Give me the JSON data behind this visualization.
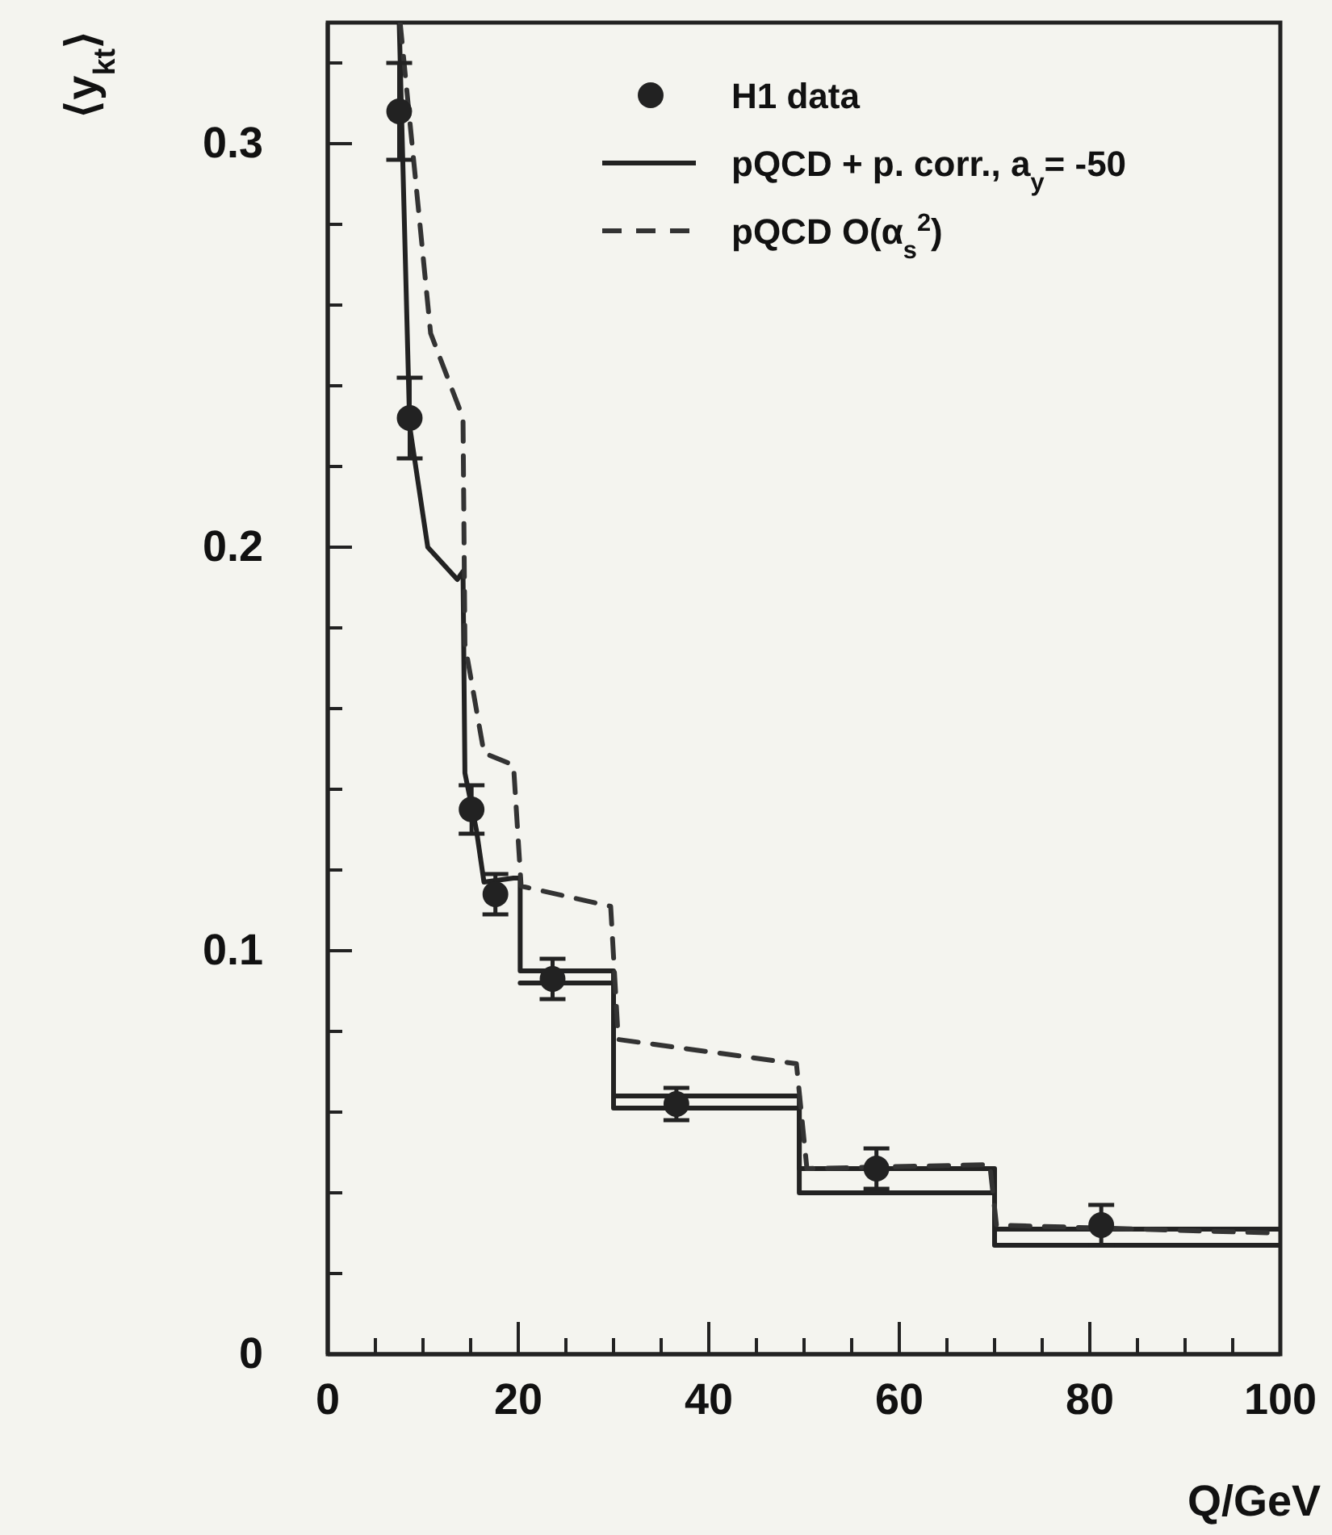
{
  "chart_data": {
    "type": "line",
    "xlabel": "Q/GeV",
    "ylabel": "⟨y$_{kt}$⟩",
    "xlim": [
      0,
      100
    ],
    "ylim": [
      0,
      0.33
    ],
    "xticks": [
      0,
      {
        "value": 5,
        "label": null
      },
      {
        "value": 10,
        "label": null
      },
      {
        "value": 15,
        "label": null
      },
      20,
      {
        "value": 25,
        "label": null
      },
      {
        "value": 30,
        "label": null
      },
      {
        "value": 35,
        "label": null
      },
      40,
      {
        "value": 45,
        "label": null
      },
      {
        "value": 50,
        "label": null
      },
      {
        "value": 55,
        "label": null
      },
      60,
      {
        "value": 65,
        "label": null
      },
      {
        "value": 70,
        "label": null
      },
      {
        "value": 75,
        "label": null
      },
      80,
      {
        "value": 85,
        "label": null
      },
      {
        "value": 90,
        "label": null
      },
      {
        "value": 95,
        "label": null
      },
      100
    ],
    "yticks": [
      0,
      {
        "value": 0.02,
        "label": null
      },
      {
        "value": 0.04,
        "label": null
      },
      {
        "value": 0.06,
        "label": null
      },
      {
        "value": 0.08,
        "label": null
      },
      0.1,
      {
        "value": 0.12,
        "label": null
      },
      {
        "value": 0.14,
        "label": null
      },
      {
        "value": 0.16,
        "label": null
      },
      {
        "value": 0.18,
        "label": null
      },
      0.2,
      {
        "value": 0.22,
        "label": null
      },
      {
        "value": 0.24,
        "label": null
      },
      {
        "value": 0.26,
        "label": null
      },
      {
        "value": 0.28,
        "label": null
      },
      0.3,
      {
        "value": 0.32,
        "label": null
      }
    ],
    "legend": "top right",
    "series": [
      {
        "name": "H1 data",
        "type": "scatter",
        "marker": "circle",
        "color": "#222222",
        "x": [
          7.5,
          8.6,
          15.1,
          17.6,
          23.6,
          36.6,
          57.6,
          81.2
        ],
        "values": [
          0.308,
          0.232,
          0.135,
          0.114,
          0.093,
          0.062,
          0.046,
          0.032
        ],
        "errors": [
          0.012,
          0.01,
          0.006,
          0.005,
          0.005,
          0.004,
          0.005,
          0.005
        ]
      },
      {
        "name": "pQCD + p. corr., a$_{y}$= -50",
        "line_style": "solid",
        "color": "#222222",
        "x": [
          7.5,
          8.6,
          10.5,
          13.6,
          14.2,
          14.4,
          15.6,
          16.4,
          19.5,
          20.2,
          20.2,
          30,
          30,
          49.5,
          49.5,
          70,
          70,
          100
        ],
        "values": [
          0.33,
          0.23,
          0.2,
          0.192,
          0.194,
          0.144,
          0.13,
          0.117,
          0.118,
          0.118,
          0.095,
          0.095,
          0.064,
          0.064,
          0.046,
          0.046,
          0.031,
          0.031
        ]
      },
      {
        "line_style": "solid",
        "color": "#222222",
        "x": [
          20.2,
          30,
          30,
          49.5,
          49.5,
          70,
          70,
          100
        ],
        "values": [
          0.092,
          0.092,
          0.061,
          0.061,
          0.04,
          0.04,
          0.027,
          0.027
        ]
      },
      {
        "name": "pQCD O(α$_{s}$$^{2}$)",
        "line_style": "dashed",
        "color": "#333333",
        "x": [
          7.6,
          10.8,
          14.2,
          14.4,
          16.4,
          19.5,
          20.3,
          29.7,
          30.5,
          49.2,
          50.3,
          69.5,
          70.2,
          100
        ],
        "values": [
          0.33,
          0.253,
          0.232,
          0.176,
          0.149,
          0.146,
          0.116,
          0.111,
          0.078,
          0.072,
          0.046,
          0.047,
          0.032,
          0.03
        ]
      }
    ]
  }
}
